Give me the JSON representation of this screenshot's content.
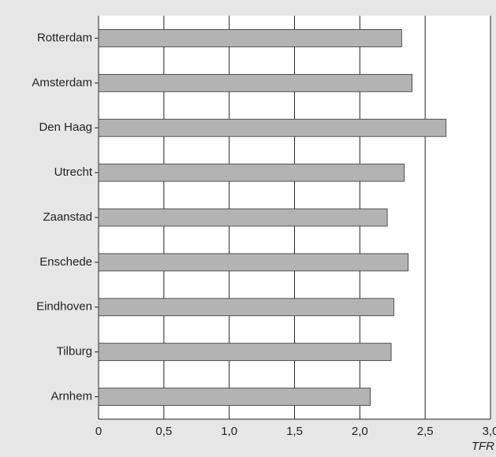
{
  "chart_data": {
    "type": "bar",
    "orientation": "horizontal",
    "categories": [
      "Rotterdam",
      "Amsterdam",
      "Den Haag",
      "Utrecht",
      "Zaanstad",
      "Enschede",
      "Eindhoven",
      "Tilburg",
      "Arnhem"
    ],
    "values": [
      2.32,
      2.4,
      2.66,
      2.34,
      2.21,
      2.37,
      2.26,
      2.24,
      2.08
    ],
    "color": "#b3b3b3",
    "x_label": "TFR",
    "xlim": [
      0,
      3.0
    ],
    "xticks": [
      0,
      {
        "value": 0.5,
        "label": "0,5"
      },
      {
        "value": 1.0,
        "label": "1,0"
      },
      {
        "value": 1.5,
        "label": "1,5"
      },
      {
        "value": 2.0,
        "label": "2,0"
      },
      {
        "value": 2.5,
        "label": "2,5"
      },
      {
        "value": 3.0,
        "label": "3,0"
      }
    ],
    "grid": true
  }
}
